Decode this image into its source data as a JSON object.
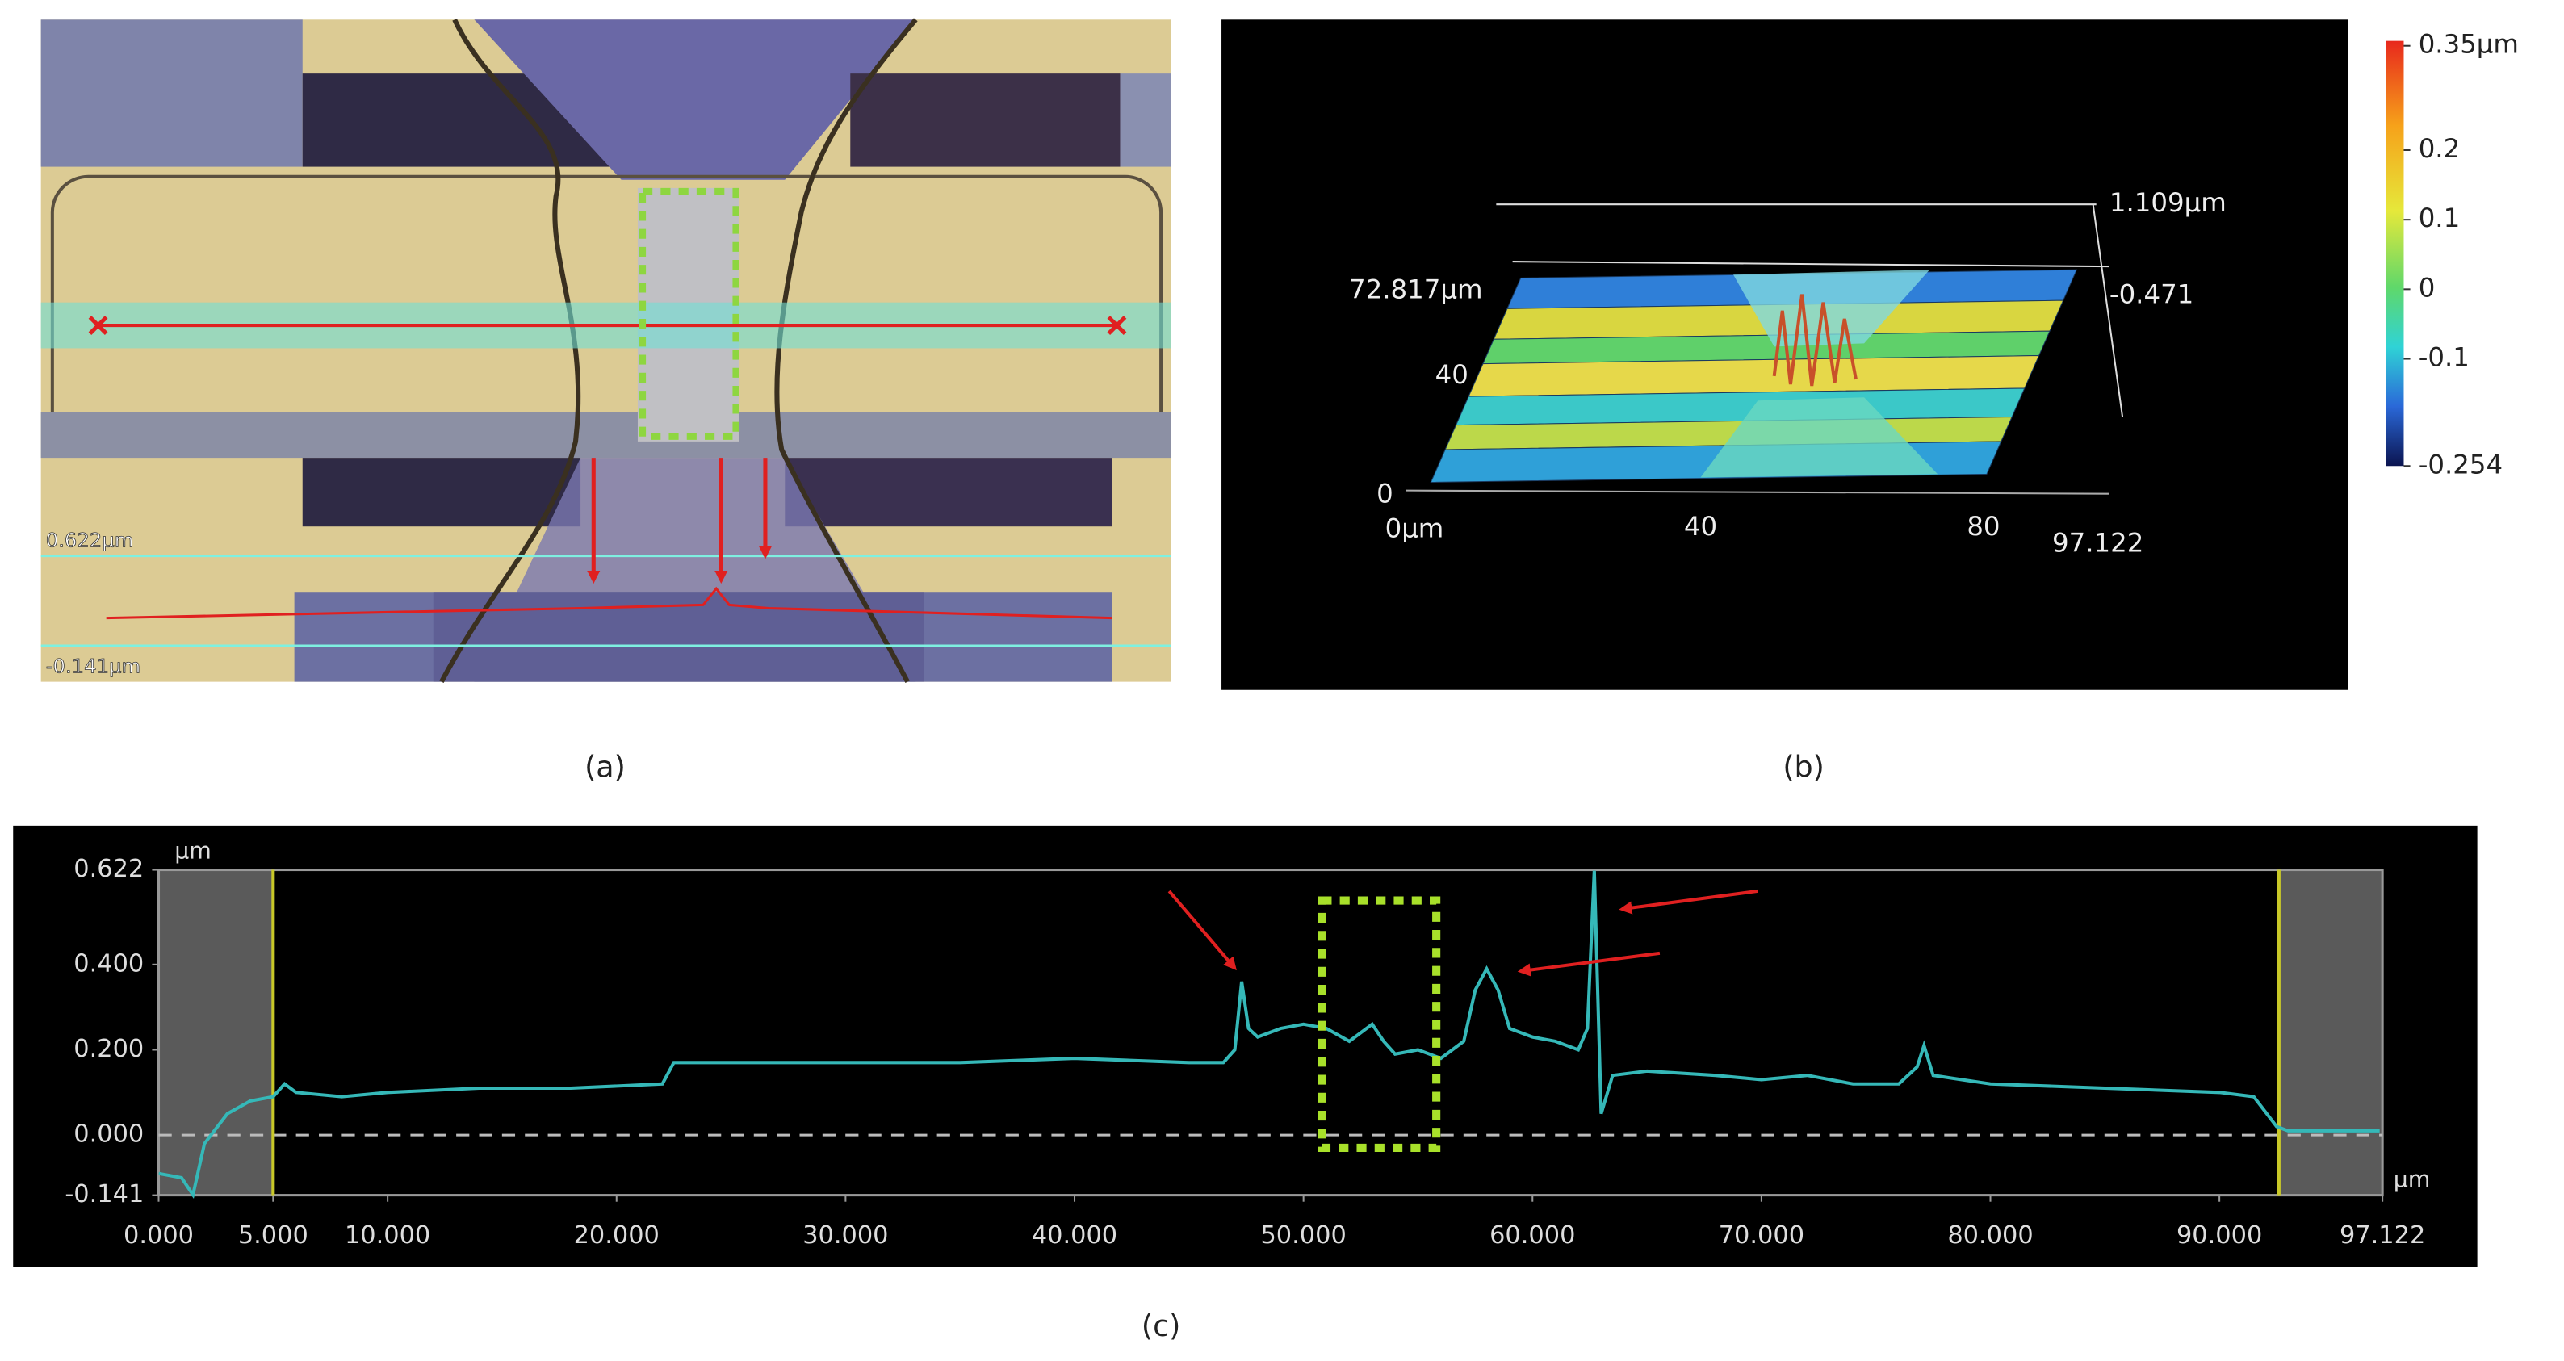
{
  "panel_a": {
    "label": "(a)",
    "profile_labels": [
      "0.622µm",
      "-0.141µm"
    ]
  },
  "panel_b": {
    "label": "(b)",
    "axis_labels": [
      "1.109µm",
      "-0.471",
      "72.817µm",
      "40",
      "0",
      "0µm",
      "40",
      "80",
      "97.122"
    ],
    "colorbar": {
      "lim": [
        -0.254,
        0.35
      ],
      "ticks": [
        {
          "value": 0.35,
          "label": "0.35µm"
        },
        0.2,
        0.1,
        0,
        -0.1,
        -0.254
      ]
    }
  },
  "chart_data": {
    "type": "line",
    "label": "(c)",
    "x": [
      0,
      1,
      1.5,
      2,
      3,
      4,
      5,
      5.5,
      6,
      8,
      10,
      14,
      18,
      22,
      22.5,
      25,
      30,
      35,
      40,
      45,
      46.5,
      47,
      47.3,
      47.6,
      48,
      49,
      50,
      51,
      52,
      52.5,
      53,
      53.5,
      54,
      55,
      56,
      57,
      57.5,
      58,
      58.5,
      59,
      60,
      61,
      62,
      62.4,
      62.7,
      63,
      63.5,
      65,
      68,
      70,
      72,
      74,
      76,
      76.8,
      77.1,
      77.5,
      80,
      85,
      90,
      91.5,
      92.5,
      93,
      95,
      97
    ],
    "values": [
      -0.09,
      -0.1,
      -0.14,
      -0.02,
      0.05,
      0.08,
      0.09,
      0.12,
      0.1,
      0.09,
      0.1,
      0.11,
      0.11,
      0.12,
      0.17,
      0.17,
      0.17,
      0.17,
      0.18,
      0.17,
      0.17,
      0.2,
      0.36,
      0.25,
      0.23,
      0.25,
      0.26,
      0.25,
      0.22,
      0.24,
      0.26,
      0.22,
      0.19,
      0.2,
      0.18,
      0.22,
      0.34,
      0.39,
      0.34,
      0.25,
      0.23,
      0.22,
      0.2,
      0.25,
      0.62,
      0.05,
      0.14,
      0.15,
      0.14,
      0.13,
      0.14,
      0.12,
      0.12,
      0.16,
      0.21,
      0.14,
      0.12,
      0.11,
      0.1,
      0.09,
      0.02,
      0.01,
      0.01,
      0.01
    ],
    "color": "#35b8b8",
    "xlim": [
      0,
      97.122
    ],
    "ylim": [
      -0.141,
      0.622
    ],
    "xticks": [
      {
        "value": 0,
        "label": "0.000"
      },
      {
        "value": 5,
        "label": "5.000"
      },
      {
        "value": 10,
        "label": "10.000"
      },
      {
        "value": 20,
        "label": "20.000"
      },
      {
        "value": 30,
        "label": "30.000"
      },
      {
        "value": 40,
        "label": "40.000"
      },
      {
        "value": 50,
        "label": "50.000"
      },
      {
        "value": 60,
        "label": "60.000"
      },
      {
        "value": 70,
        "label": "70.000"
      },
      {
        "value": 80,
        "label": "80.000"
      },
      {
        "value": 90,
        "label": "90.000"
      },
      97.122
    ],
    "yticks": [
      0.622,
      {
        "value": 0.4,
        "label": "0.400"
      },
      {
        "value": 0.2,
        "label": "0.200"
      },
      {
        "value": 0,
        "label": "0.000"
      },
      -0.141
    ],
    "x_unit": "µm",
    "y_unit": "µm",
    "cursors": [
      5,
      92.6
    ],
    "highlight": {
      "x": [
        50.8,
        55.8
      ],
      "y": [
        -0.03,
        0.55
      ]
    }
  }
}
